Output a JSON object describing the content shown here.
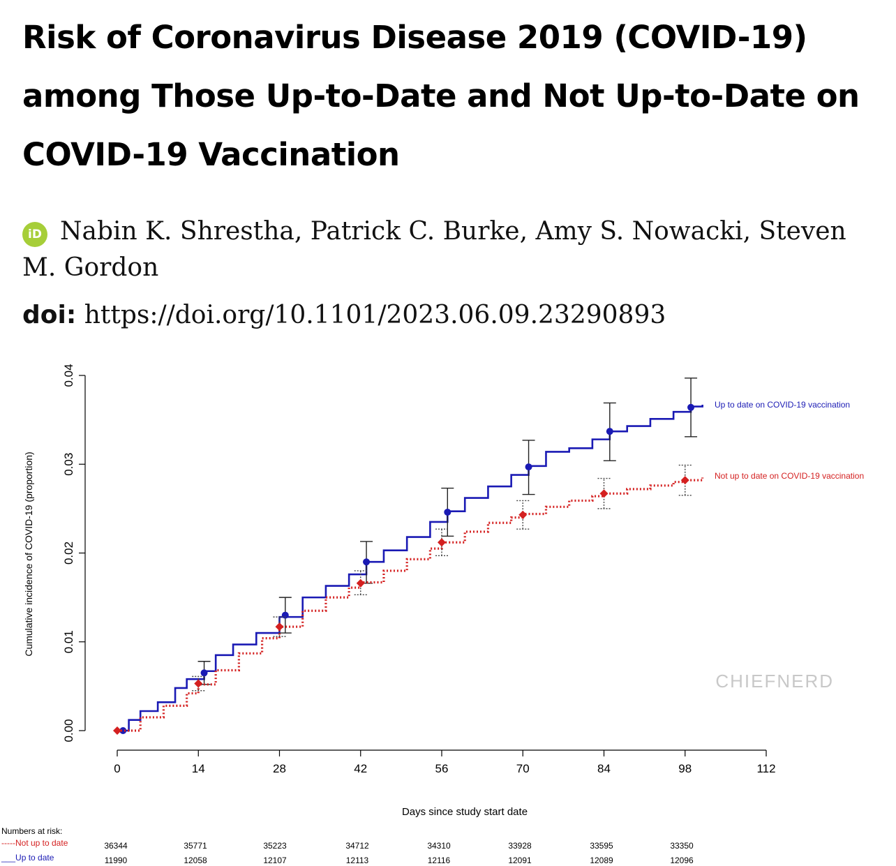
{
  "header": {
    "title": "Risk of Coronavirus Disease 2019 (COVID-19) among Those Up-to-Date and Not Up-to-Date on COVID-19 Vaccination",
    "authors": "Nabin K. Shrestha, Patrick C. Burke, Amy S. Nowacki, Steven M. Gordon",
    "orcid_label": "iD",
    "doi_label": "doi:",
    "doi_value": "https://doi.org/10.1101/2023.06.09.23290893"
  },
  "watermark": "CHIEFNERD",
  "colors": {
    "up_to_date": "#1a1ab4",
    "not_up_to_date": "#d42020",
    "orcid": "#a6ce39"
  },
  "chart_data": {
    "type": "line",
    "xlabel": "Days since study start date",
    "ylabel": "Cumulative incidence of COVID-19 (proportion)",
    "xlim": [
      0,
      112
    ],
    "ylim": [
      0,
      0.04
    ],
    "x_ticks": [
      "0",
      "14",
      "28",
      "42",
      "56",
      "70",
      "84",
      "98",
      "112"
    ],
    "y_ticks": [
      "0.00",
      "0.01",
      "0.02",
      "0.03",
      "0.04"
    ],
    "series": [
      {
        "name": "Up to date on COVID-19 vaccination",
        "style": "solid step",
        "x": [
          0,
          2,
          4,
          7,
          10,
          12,
          15,
          17,
          20,
          24,
          28,
          32,
          36,
          40,
          43,
          46,
          50,
          54,
          57,
          60,
          64,
          68,
          71,
          74,
          78,
          82,
          85,
          88,
          92,
          96,
          99,
          101
        ],
        "y": [
          0,
          0.0012,
          0.0022,
          0.0032,
          0.0048,
          0.0058,
          0.0067,
          0.0085,
          0.0097,
          0.011,
          0.0128,
          0.015,
          0.0163,
          0.0176,
          0.019,
          0.0203,
          0.0218,
          0.0235,
          0.0247,
          0.0262,
          0.0275,
          0.0288,
          0.0298,
          0.0314,
          0.0318,
          0.0328,
          0.0337,
          0.0343,
          0.0351,
          0.0359,
          0.0365,
          0.0367
        ],
        "markers": [
          {
            "x": 1,
            "y": 0.0,
            "lo": 0.0,
            "hi": 0.0
          },
          {
            "x": 15,
            "y": 0.0065,
            "lo": 0.0052,
            "hi": 0.0078
          },
          {
            "x": 29,
            "y": 0.013,
            "lo": 0.011,
            "hi": 0.015
          },
          {
            "x": 43,
            "y": 0.019,
            "lo": 0.0166,
            "hi": 0.0213
          },
          {
            "x": 57,
            "y": 0.0246,
            "lo": 0.0219,
            "hi": 0.0273
          },
          {
            "x": 71,
            "y": 0.0297,
            "lo": 0.0266,
            "hi": 0.0327
          },
          {
            "x": 85,
            "y": 0.0337,
            "lo": 0.0304,
            "hi": 0.0369
          },
          {
            "x": 99,
            "y": 0.0364,
            "lo": 0.0331,
            "hi": 0.0397
          }
        ]
      },
      {
        "name": "Not up to date on COVID-19 vaccination",
        "style": "dotted step",
        "x": [
          0,
          4,
          8,
          12,
          14,
          17,
          21,
          25,
          28,
          32,
          36,
          40,
          42,
          46,
          50,
          54,
          56,
          60,
          64,
          68,
          70,
          74,
          78,
          82,
          84,
          88,
          92,
          96,
          98,
          101
        ],
        "y": [
          0,
          0.0015,
          0.0028,
          0.0042,
          0.0052,
          0.0068,
          0.0087,
          0.0104,
          0.0117,
          0.0135,
          0.015,
          0.0161,
          0.0167,
          0.018,
          0.0193,
          0.0205,
          0.0212,
          0.0224,
          0.0234,
          0.024,
          0.0244,
          0.0252,
          0.0259,
          0.0264,
          0.0267,
          0.0272,
          0.0276,
          0.028,
          0.0282,
          0.0285
        ],
        "markers": [
          {
            "x": 0,
            "y": 0.0,
            "lo": 0.0,
            "hi": 0.0
          },
          {
            "x": 14,
            "y": 0.0053,
            "lo": 0.0045,
            "hi": 0.0061
          },
          {
            "x": 28,
            "y": 0.0117,
            "lo": 0.0106,
            "hi": 0.0128
          },
          {
            "x": 42,
            "y": 0.0166,
            "lo": 0.0153,
            "hi": 0.018
          },
          {
            "x": 56,
            "y": 0.0212,
            "lo": 0.0197,
            "hi": 0.0227
          },
          {
            "x": 70,
            "y": 0.0243,
            "lo": 0.0227,
            "hi": 0.0259
          },
          {
            "x": 84,
            "y": 0.0267,
            "lo": 0.025,
            "hi": 0.0284
          },
          {
            "x": 98,
            "y": 0.0282,
            "lo": 0.0265,
            "hi": 0.0299
          }
        ]
      }
    ],
    "legend": {
      "up_to_date_label": "Up to date on COVID-19 vaccination",
      "not_up_to_date_label": "Not up to date on COVID-19 vaccination"
    },
    "risk_table": {
      "title": "Numbers at risk:",
      "rows": [
        {
          "label": "-----Not up to date",
          "values": [
            "36344",
            "35771",
            "35223",
            "34712",
            "34310",
            "33928",
            "33595",
            "33350"
          ]
        },
        {
          "label": "___Up to date",
          "values": [
            "11990",
            "12058",
            "12107",
            "12113",
            "12116",
            "12091",
            "12089",
            "12096"
          ]
        }
      ]
    }
  }
}
